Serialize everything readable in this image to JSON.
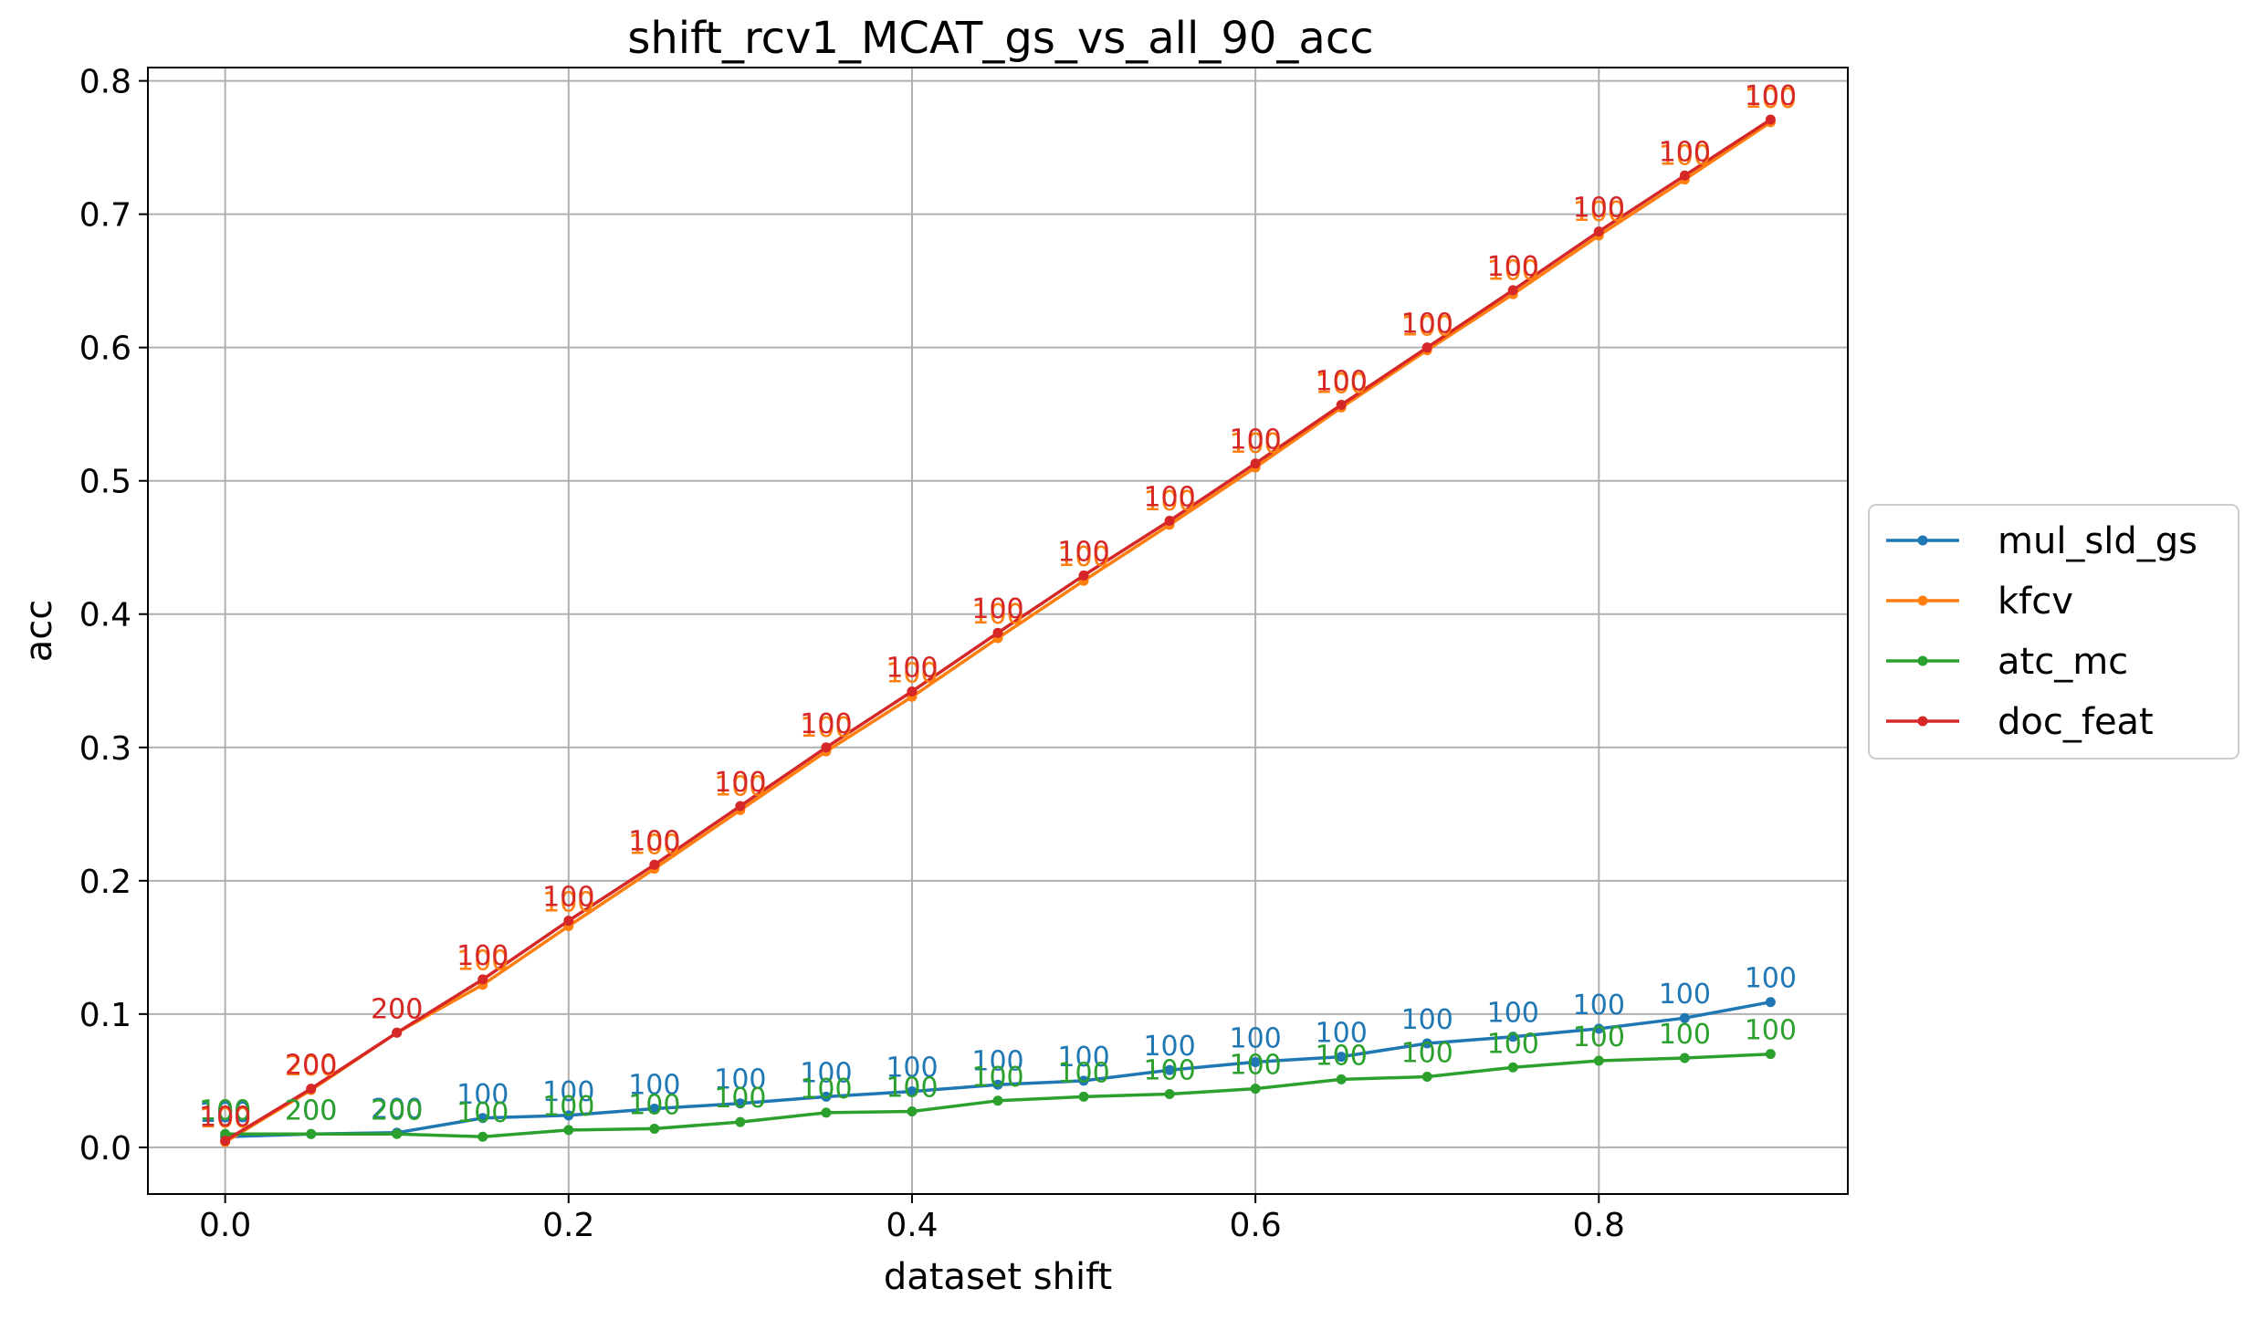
{
  "chart_data": {
    "type": "line",
    "title": "shift_rcv1_MCAT_gs_vs_all_90_acc",
    "xlabel": "dataset shift",
    "ylabel": "acc",
    "xlim": [
      -0.045,
      0.945
    ],
    "ylim": [
      -0.035,
      0.81
    ],
    "xticks": [
      0.0,
      0.2,
      0.4,
      0.6,
      0.8
    ],
    "xtick_labels": [
      "0.0",
      "0.2",
      "0.4",
      "0.6",
      "0.8"
    ],
    "yticks": [
      0.0,
      0.1,
      0.2,
      0.3,
      0.4,
      0.5,
      0.6,
      0.7,
      0.8
    ],
    "ytick_labels": [
      "0.0",
      "0.1",
      "0.2",
      "0.3",
      "0.4",
      "0.5",
      "0.6",
      "0.7",
      "0.8"
    ],
    "grid": true,
    "legend_position": "outside-right",
    "x": [
      0.0,
      0.05,
      0.1,
      0.15,
      0.2,
      0.25,
      0.3,
      0.35,
      0.4,
      0.45,
      0.5,
      0.55,
      0.6,
      0.65,
      0.7,
      0.75,
      0.8,
      0.85,
      0.9
    ],
    "series": [
      {
        "name": "mul_sld_gs",
        "color": "#1f77b4",
        "values": [
          0.008,
          0.01,
          0.011,
          0.022,
          0.024,
          0.029,
          0.033,
          0.038,
          0.042,
          0.047,
          0.05,
          0.058,
          0.064,
          0.068,
          0.078,
          0.083,
          0.089,
          0.097,
          0.109
        ],
        "labels": [
          "100",
          "200",
          "200",
          "100",
          "100",
          "100",
          "100",
          "100",
          "100",
          "100",
          "100",
          "100",
          "100",
          "100",
          "100",
          "100",
          "100",
          "100",
          "100"
        ]
      },
      {
        "name": "kfcv",
        "color": "#ff7f0e",
        "values": [
          0.004,
          0.043,
          0.086,
          0.122,
          0.166,
          0.209,
          0.253,
          0.297,
          0.338,
          0.382,
          0.425,
          0.467,
          0.51,
          0.555,
          0.598,
          0.64,
          0.684,
          0.726,
          0.769
        ],
        "labels": [
          "100",
          "200",
          "200",
          "100",
          "100",
          "100",
          "100",
          "100",
          "100",
          "100",
          "100",
          "100",
          "100",
          "100",
          "100",
          "100",
          "100",
          "100",
          "100"
        ]
      },
      {
        "name": "atc_mc",
        "color": "#2ca02c",
        "values": [
          0.01,
          0.01,
          0.01,
          0.008,
          0.013,
          0.014,
          0.019,
          0.026,
          0.027,
          0.035,
          0.038,
          0.04,
          0.044,
          0.051,
          0.053,
          0.06,
          0.065,
          0.067,
          0.07
        ],
        "labels": [
          "100",
          "200",
          "200",
          "100",
          "100",
          "100",
          "100",
          "100",
          "100",
          "100",
          "100",
          "100",
          "100",
          "100",
          "100",
          "100",
          "100",
          "100",
          "100"
        ]
      },
      {
        "name": "doc_feat",
        "color": "#d62728",
        "values": [
          0.005,
          0.044,
          0.086,
          0.126,
          0.17,
          0.212,
          0.256,
          0.3,
          0.342,
          0.386,
          0.429,
          0.47,
          0.513,
          0.557,
          0.6,
          0.643,
          0.687,
          0.729,
          0.771
        ],
        "labels": [
          "100",
          "200",
          "200",
          "100",
          "100",
          "100",
          "100",
          "100",
          "100",
          "100",
          "100",
          "100",
          "100",
          "100",
          "100",
          "100",
          "100",
          "100",
          "100"
        ]
      }
    ]
  }
}
